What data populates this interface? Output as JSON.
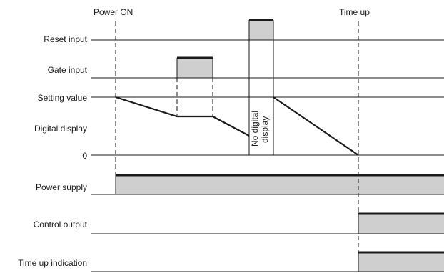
{
  "markers": {
    "power_on": "Power ON",
    "time_up": "Time up"
  },
  "rows": {
    "reset_input": "Reset input",
    "gate_input": "Gate input",
    "setting_value": "Setting value",
    "digital_display": "Digital display",
    "zero": "0",
    "power_supply": "Power supply",
    "control_output": "Control output",
    "time_up_indication": "Time up indication"
  },
  "notes": {
    "no_digital_line1": "No digital",
    "no_digital_line2": "display"
  },
  "colors": {
    "line": "#1a1a1a",
    "pulse_fill": "#cfcfcf",
    "background": "#ffffff"
  }
}
